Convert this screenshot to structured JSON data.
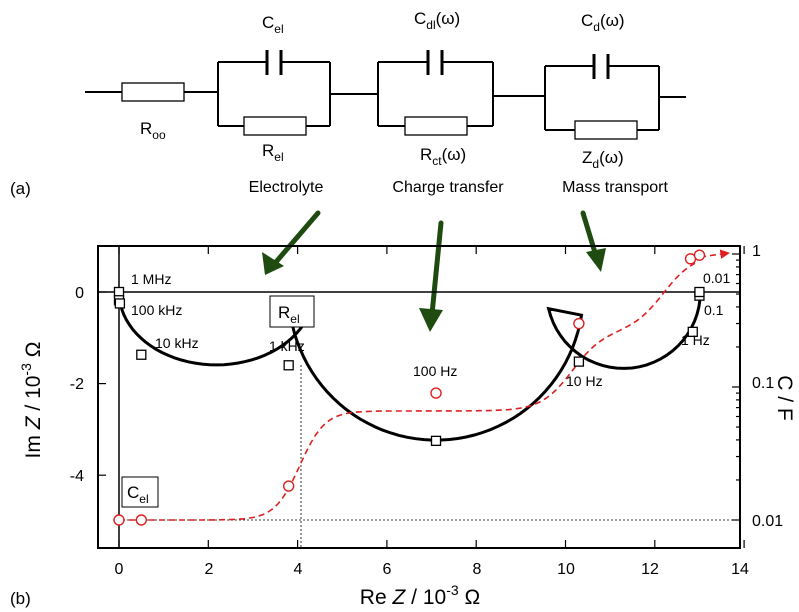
{
  "circuit": {
    "panel_label": "(a)",
    "resistor_labels": [
      {
        "main": "R",
        "sub": "oo",
        "suffix": ""
      },
      {
        "main": "R",
        "sub": "el",
        "suffix": ""
      },
      {
        "main": "R",
        "sub": "ct",
        "suffix": "(ω)"
      },
      {
        "main": "Z",
        "sub": "d",
        "suffix": "(ω)"
      }
    ],
    "capacitor_labels": [
      {
        "main": "C",
        "sub": "el",
        "suffix": ""
      },
      {
        "main": "C",
        "sub": "dl",
        "suffix": "(ω)"
      },
      {
        "main": "C",
        "sub": "d",
        "suffix": "(ω)"
      }
    ],
    "process_labels": [
      "Electrolyte",
      "Charge transfer",
      "Mass transport"
    ]
  },
  "plot": {
    "panel_label": "(b)",
    "xlabel": {
      "main": "Re ",
      "ital": "Z",
      "rest": " / 10",
      "sup": "-3",
      "unit": " Ω"
    },
    "ylabel": {
      "main": "Im ",
      "ital": "Z",
      "rest": " / 10",
      "sup": "-3",
      "unit": " Ω"
    },
    "y2label": "C / F",
    "xticks": [
      "0",
      "2",
      "4",
      "6",
      "8",
      "10",
      "12",
      "14"
    ],
    "yticks": [
      "0",
      "-2",
      "-4"
    ],
    "y2ticks": [
      "1",
      "0.1",
      "0.01"
    ],
    "freq_labels": [
      "1 MHz",
      "100 kHz",
      "10 kHz",
      "1 kHz",
      "100 Hz",
      "10 Hz",
      "1 Hz",
      "0.01",
      "0.1"
    ],
    "boxed_labels": [
      {
        "main": "R",
        "sub": "el"
      },
      {
        "main": "C",
        "sub": "el"
      }
    ]
  },
  "chart_data": {
    "type": "line",
    "xlim": [
      -0.5,
      14
    ],
    "ylim": [
      -5.7,
      1
    ],
    "y2_scale": "log",
    "y2_range": [
      0.007,
      1
    ],
    "grid": false,
    "series": [
      {
        "axis": "left",
        "style": "solid black line, open square markers",
        "x": [
          0,
          0,
          0.02,
          0.5,
          3.8,
          7.1,
          10.3,
          12.85,
          13.0,
          13.0
        ],
        "y": [
          0,
          -0.18,
          -0.25,
          -1.37,
          -1.6,
          -3.25,
          -1.52,
          -0.87,
          -0.08,
          0.0
        ]
      },
      {
        "axis": "right",
        "style": "dashed red line, open circle markers",
        "x": [
          0,
          0.5,
          3.8,
          7.1,
          10.3,
          12.8,
          13.0
        ],
        "y": [
          0.01,
          0.01,
          0.018,
          0.09,
          0.3,
          0.92,
          0.98
        ]
      }
    ]
  }
}
